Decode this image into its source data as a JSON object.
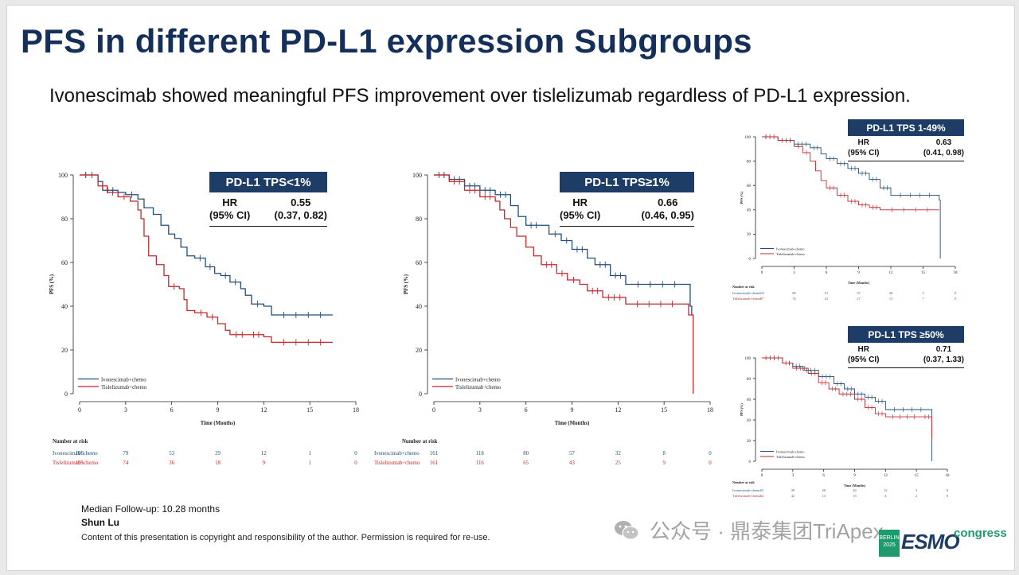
{
  "slide": {
    "title": "PFS in different PD-L1 expression Subgroups",
    "subtitle": "Ivonescimab showed meaningful PFS improvement over tislelizumab regardless of PD-L1 expression."
  },
  "colors": {
    "ivonescimab": "#1f4e79",
    "tislelizumab": "#c0282d",
    "header": "#1d3c66"
  },
  "hr_boxes": [
    {
      "title": "PD-L1 TPS<1%",
      "hr_label": "HR",
      "ci_label": "(95% CI)",
      "hr": "0.55",
      "ci": "(0.37, 0.82)"
    },
    {
      "title": "PD-L1 TPS≥1%",
      "hr_label": "HR",
      "ci_label": "(95% CI)",
      "hr": "0.66",
      "ci": "(0.46, 0.95)"
    },
    {
      "title": "PD-L1 TPS 1-49%",
      "hr_label": "HR",
      "ci_label": "(95% CI)",
      "hr": "0.63",
      "ci": "(0.41, 0.98)"
    },
    {
      "title": "PD-L1 TPS ≥50%",
      "hr_label": "HR",
      "ci_label": "(95% CI)",
      "hr": "0.71",
      "ci": "(0.37, 1.33)"
    }
  ],
  "chart_data": [
    {
      "type": "line",
      "title": "PD-L1 TPS<1%",
      "xlabel": "Time (Months)",
      "ylabel": "PFS (%)",
      "xlim": [
        0,
        18
      ],
      "ylim": [
        0,
        100
      ],
      "xticks": [
        "0",
        "3",
        "6",
        "9",
        "12",
        "15",
        "18"
      ],
      "yticks": [
        "0",
        "20",
        "40",
        "60",
        "80",
        "100"
      ],
      "legend_position": "bottom-left",
      "risk_title": "Number at risk",
      "series": [
        {
          "name": "Ivonescimab+chemo",
          "color": "#1f4e79",
          "x": [
            0,
            1.2,
            1.5,
            2.5,
            3.0,
            3.8,
            4.2,
            4.8,
            5.3,
            5.8,
            6.2,
            6.6,
            7.0,
            7.5,
            8.2,
            8.8,
            9.2,
            9.8,
            10.5,
            10.8,
            11.2,
            12.0,
            12.5,
            16.5
          ],
          "y": [
            100,
            97,
            93,
            92,
            91,
            89,
            85,
            82,
            77,
            73,
            71,
            67,
            63,
            62,
            58,
            55,
            54,
            51,
            48,
            45,
            41,
            40,
            36,
            36
          ],
          "risk": [
            "105",
            "79",
            "53",
            "29",
            "12",
            "1",
            "0"
          ]
        },
        {
          "name": "Tislelizumab+chemo",
          "color": "#c0282d",
          "x": [
            0,
            1.2,
            1.8,
            2.5,
            3.3,
            3.8,
            4.0,
            4.2,
            4.5,
            5.0,
            5.5,
            5.8,
            6.5,
            6.8,
            7.0,
            7.5,
            8.3,
            9.0,
            9.5,
            9.8,
            11.0,
            12.0,
            12.5,
            16.5
          ],
          "y": [
            100,
            95,
            92,
            90,
            88,
            84,
            80,
            72,
            63,
            59,
            54,
            49,
            48,
            43,
            38,
            37,
            35,
            32,
            29,
            27,
            27,
            26,
            23.5,
            23.5
          ],
          "risk": [
            "105",
            "74",
            "36",
            "18",
            "9",
            "1",
            "0"
          ]
        }
      ]
    },
    {
      "type": "line",
      "title": "PD-L1 TPS≥1%",
      "xlabel": "Time (Months)",
      "ylabel": "PFS (%)",
      "xlim": [
        0,
        18
      ],
      "ylim": [
        0,
        100
      ],
      "xticks": [
        "0",
        "3",
        "6",
        "9",
        "12",
        "15",
        "18"
      ],
      "yticks": [
        "0",
        "20",
        "40",
        "60",
        "80",
        "100"
      ],
      "legend_position": "bottom-left",
      "risk_title": "Number at risk",
      "series": [
        {
          "name": "Ivonescimab+chemo",
          "color": "#1f4e79",
          "x": [
            0,
            1.0,
            2.0,
            3.0,
            4.0,
            5.0,
            5.5,
            6.0,
            7.0,
            7.5,
            8.3,
            9.0,
            10.0,
            10.5,
            11.5,
            12.5,
            16.5,
            16.7,
            16.8
          ],
          "y": [
            100,
            98,
            95,
            93,
            91,
            86,
            81,
            77,
            77,
            73,
            70,
            66,
            62,
            59,
            54,
            50,
            50,
            40,
            36
          ],
          "risk": [
            "161",
            "118",
            "80",
            "57",
            "32",
            "8",
            "0"
          ]
        },
        {
          "name": "Tislelizumab+chemo",
          "color": "#c0282d",
          "x": [
            0,
            1.0,
            2.0,
            3.0,
            4.0,
            4.3,
            4.6,
            5.0,
            5.4,
            6.0,
            6.5,
            7.0,
            8.0,
            8.7,
            9.5,
            10.0,
            11.0,
            12.5,
            16.3,
            16.6,
            16.8,
            16.9
          ],
          "y": [
            100,
            97,
            93,
            90,
            88,
            84,
            80,
            76,
            72,
            67,
            63,
            59,
            55,
            52,
            50,
            47,
            44,
            41,
            41,
            36,
            36,
            0
          ],
          "risk": [
            "161",
            "116",
            "65",
            "43",
            "25",
            "9",
            "0"
          ]
        }
      ]
    },
    {
      "type": "line",
      "title": "PD-L1 TPS 1-49%",
      "xlabel": "Time (Months)",
      "ylabel": "PFS (%)",
      "xlim": [
        0,
        18
      ],
      "ylim": [
        0,
        100
      ],
      "xticks": [
        "0",
        "3",
        "6",
        "9",
        "12",
        "15",
        "18"
      ],
      "yticks": [
        "0",
        "20",
        "40",
        "60",
        "80",
        "100"
      ],
      "legend_position": "bottom-left",
      "risk_title": "Number at risk",
      "series": [
        {
          "name": "Ivonescimab+chemo",
          "color": "#1f4e79",
          "x": [
            0,
            1.5,
            3.0,
            4.5,
            5.5,
            6.0,
            7.0,
            8.0,
            9.0,
            10.0,
            11.0,
            12.0,
            16.5,
            16.6
          ],
          "y": [
            100,
            97,
            94,
            91,
            86,
            82,
            78,
            74,
            70,
            65,
            58,
            52,
            48,
            0
          ],
          "risk": [
            "115",
            "80",
            "51",
            "37",
            "20",
            "5",
            "0"
          ]
        },
        {
          "name": "Tislelizumab+chemo",
          "color": "#c0282d",
          "x": [
            0,
            1.5,
            3.0,
            3.8,
            4.5,
            5.0,
            5.5,
            6.0,
            7.0,
            8.0,
            9.0,
            10.0,
            11.0,
            16.5
          ],
          "y": [
            100,
            97,
            92,
            87,
            80,
            72,
            64,
            58,
            52,
            47,
            44,
            42,
            40,
            40
          ],
          "risk": [
            "97",
            "74",
            "41",
            "27",
            "15",
            "7",
            "0"
          ]
        }
      ]
    },
    {
      "type": "line",
      "title": "PD-L1 TPS ≥50%",
      "xlabel": "Time (Months)",
      "ylabel": "PFS (%)",
      "xlim": [
        0,
        18
      ],
      "ylim": [
        0,
        100
      ],
      "xticks": [
        "0",
        "3",
        "6",
        "9",
        "12",
        "15",
        "18"
      ],
      "yticks": [
        "0",
        "20",
        "40",
        "60",
        "80",
        "100"
      ],
      "legend_position": "bottom-left",
      "risk_title": "Number at risk",
      "series": [
        {
          "name": "Ivonescimab+chemo",
          "color": "#1f4e79",
          "x": [
            0,
            2.0,
            3.0,
            4.0,
            5.5,
            7.0,
            8.0,
            9.0,
            10.0,
            11.0,
            12.0,
            16.3,
            16.5
          ],
          "y": [
            100,
            95,
            92,
            88,
            82,
            75,
            70,
            65,
            62,
            58,
            50,
            50,
            0
          ],
          "risk": [
            "55",
            "39",
            "28",
            "20",
            "12",
            "3",
            "0"
          ]
        },
        {
          "name": "Tislelizumab+chemo",
          "color": "#c0282d",
          "x": [
            0,
            2.0,
            3.0,
            4.5,
            5.5,
            6.5,
            7.5,
            9.0,
            10.0,
            11.0,
            12.0,
            15.5,
            16.5
          ],
          "y": [
            100,
            95,
            90,
            85,
            76,
            70,
            65,
            60,
            52,
            46,
            43,
            43,
            21
          ],
          "risk": [
            "62",
            "42",
            "14",
            "13",
            "4",
            "2",
            "0"
          ]
        }
      ]
    }
  ],
  "footer": {
    "followup": "Median Follow-up: 10.28 months",
    "author": "Shun Lu",
    "copyright": "Content of this presentation is copyright and responsibility of the author. Permission is required for re-use."
  },
  "watermark": {
    "text": "公众号 · 鼎泰集团TriApex",
    "icon": "wechat-icon"
  },
  "logo": {
    "city": "BERLIN",
    "year": "2025",
    "word": "ESMO",
    "congress": "congress"
  }
}
